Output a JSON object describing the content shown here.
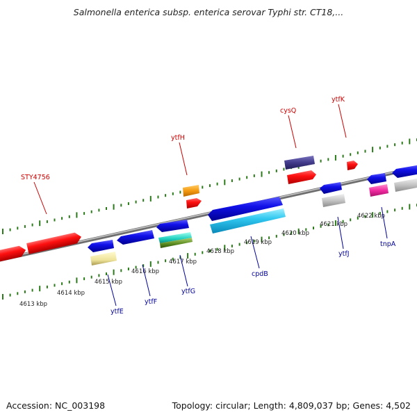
{
  "title": "Salmonella enterica subsp. enterica serovar Typhi str. CT18,...",
  "footer": {
    "accession": "Accession: NC_003198",
    "summary": "Topology: circular; Length: 4,809,037 bp; Genes: 4,502"
  },
  "colors": {
    "backbone": "#8a8a8a",
    "upper_ticks": "#2a7a1a",
    "lower_ticks": "#2a7a1a",
    "forward_label": "#cc0000",
    "reverse_label": "#000099"
  },
  "scale": {
    "tick_labels": [
      "4613 kbp",
      "4614 kbp",
      "4615 kbp",
      "4616 kbp",
      "4617 kbp",
      "4618 kbp",
      "4619 kbp",
      "4620 kbp",
      "4621 kbp",
      "4622 kbp"
    ]
  },
  "upper_labels": [
    "STY4756",
    "ytfH",
    "cysQ",
    "ytfK"
  ],
  "lower_labels": [
    "ytfE",
    "ytfF",
    "ytfG",
    "cpdB",
    "ytfJ",
    "tnpA"
  ]
}
